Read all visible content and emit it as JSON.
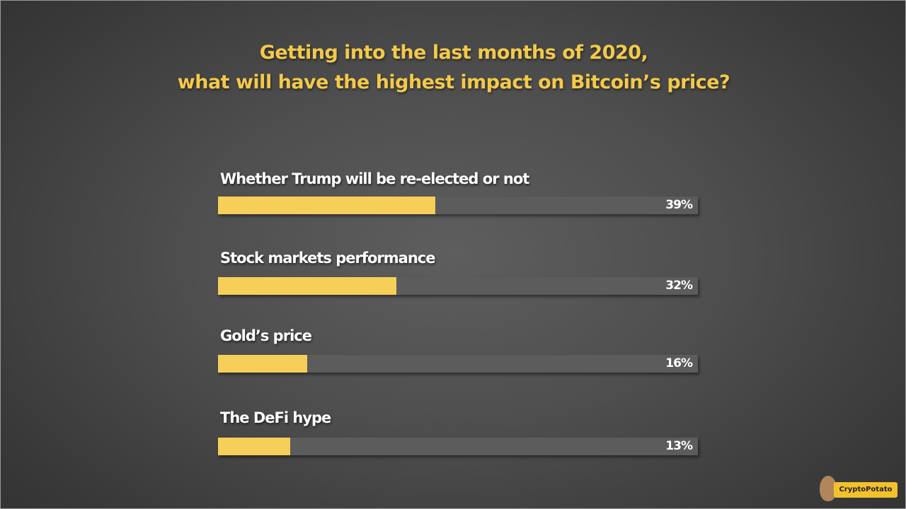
{
  "chart_data": {
    "type": "bar",
    "orientation": "horizontal",
    "title": [
      "Getting into the last months of 2020,",
      "what will have the highest impact on Bitcoin’s price?"
    ],
    "categories": [
      "Whether Trump will be re-elected or not",
      "Stock markets performance",
      "Gold’s price",
      "The DeFi hype"
    ],
    "values": [
      39,
      32,
      16,
      13
    ],
    "value_labels": [
      "39%",
      "32%",
      "16%",
      "13%"
    ],
    "bar_color": "#f5cf58",
    "track_color": "#5c5c5c",
    "title_color": "#f3c94a"
  },
  "logo": {
    "text": "CryptoPotato"
  }
}
